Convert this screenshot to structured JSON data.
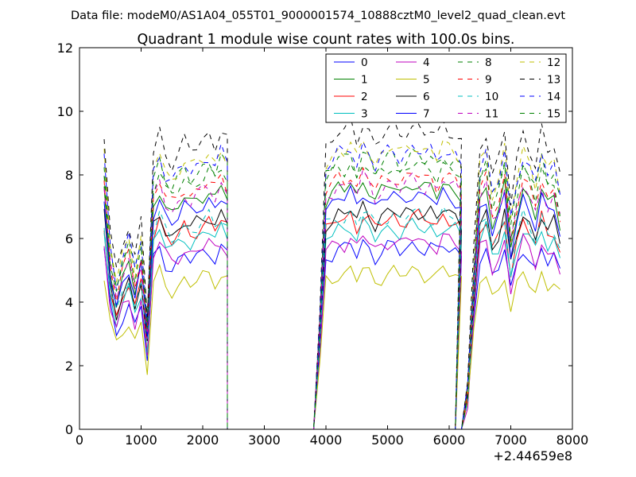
{
  "header": {
    "suptitle": "Data file: modeM0/AS1A04_055T01_9000001574_10888cztM0_level2_quad_clean.evt"
  },
  "chart_data": {
    "type": "line",
    "title": "Quadrant 1 module wise count rates with 100.0s bins.",
    "xlabel": "",
    "ylabel": "",
    "offset_label": "+2.44659e8",
    "xlim": [
      0,
      8000
    ],
    "ylim": [
      0,
      12
    ],
    "xticks": [
      0,
      1000,
      2000,
      3000,
      4000,
      5000,
      6000,
      7000,
      8000
    ],
    "yticks": [
      0,
      2,
      4,
      6,
      8,
      10,
      12
    ],
    "legend_position": "top-right",
    "legend_columns": 4,
    "segments": [
      {
        "start": 400,
        "count": 21
      },
      {
        "start": 2400,
        "count": 1
      },
      {
        "start": 3800,
        "count": 25
      },
      {
        "start": 6100,
        "count": 18
      }
    ],
    "series": [
      {
        "name": "0",
        "color": "#0000ff",
        "dash": "solid",
        "level": 5.7
      },
      {
        "name": "1",
        "color": "#008000",
        "dash": "solid",
        "level": 7.6
      },
      {
        "name": "2",
        "color": "#ff0000",
        "dash": "solid",
        "level": 6.6
      },
      {
        "name": "3",
        "color": "#00bfbf",
        "dash": "solid",
        "level": 6.3
      },
      {
        "name": "4",
        "color": "#bf00bf",
        "dash": "solid",
        "level": 5.9
      },
      {
        "name": "5",
        "color": "#bfbf00",
        "dash": "solid",
        "level": 4.9
      },
      {
        "name": "6",
        "color": "#000000",
        "dash": "solid",
        "level": 6.8
      },
      {
        "name": "7",
        "color": "#0000ff",
        "dash": "solid",
        "level": 7.3
      },
      {
        "name": "8",
        "color": "#008000",
        "dash": "dashed",
        "level": 8.5
      },
      {
        "name": "9",
        "color": "#ff0000",
        "dash": "dashed",
        "level": 7.9
      },
      {
        "name": "10",
        "color": "#00bfbf",
        "dash": "dashed",
        "level": 6.7
      },
      {
        "name": "11",
        "color": "#bf00bf",
        "dash": "dashed",
        "level": 7.7
      },
      {
        "name": "12",
        "color": "#bfbf00",
        "dash": "dashed",
        "level": 8.8
      },
      {
        "name": "13",
        "color": "#000000",
        "dash": "dashed",
        "level": 9.4
      },
      {
        "name": "14",
        "color": "#0000ff",
        "dash": "dashed",
        "level": 8.7
      },
      {
        "name": "15",
        "color": "#008000",
        "dash": "dashed",
        "level": 8.2
      }
    ],
    "profile": [
      0.98,
      0.66,
      0.53,
      0.63,
      0.69,
      0.57,
      0.69,
      0.38,
      0.93,
      1.0,
      0.92,
      0.89,
      0.92,
      0.96,
      0.93,
      0.95,
      0.97,
      0.99,
      0.95,
      1.0,
      0.96,
      0.0,
      0.0,
      0.4,
      0.95,
      0.97,
      1.0,
      0.99,
      1.02,
      0.96,
      1.03,
      1.0,
      0.95,
      0.98,
      1.0,
      1.01,
      0.98,
      1.0,
      1.02,
      1.01,
      0.99,
      1.0,
      0.97,
      1.02,
      1.0,
      0.99,
      0.96,
      0.0,
      0.0,
      0.15,
      0.6,
      0.95,
      1.0,
      0.85,
      0.9,
      1.0,
      0.75,
      0.9,
      1.0,
      0.95,
      0.88,
      1.0,
      0.92,
      0.95,
      0.85
    ]
  }
}
